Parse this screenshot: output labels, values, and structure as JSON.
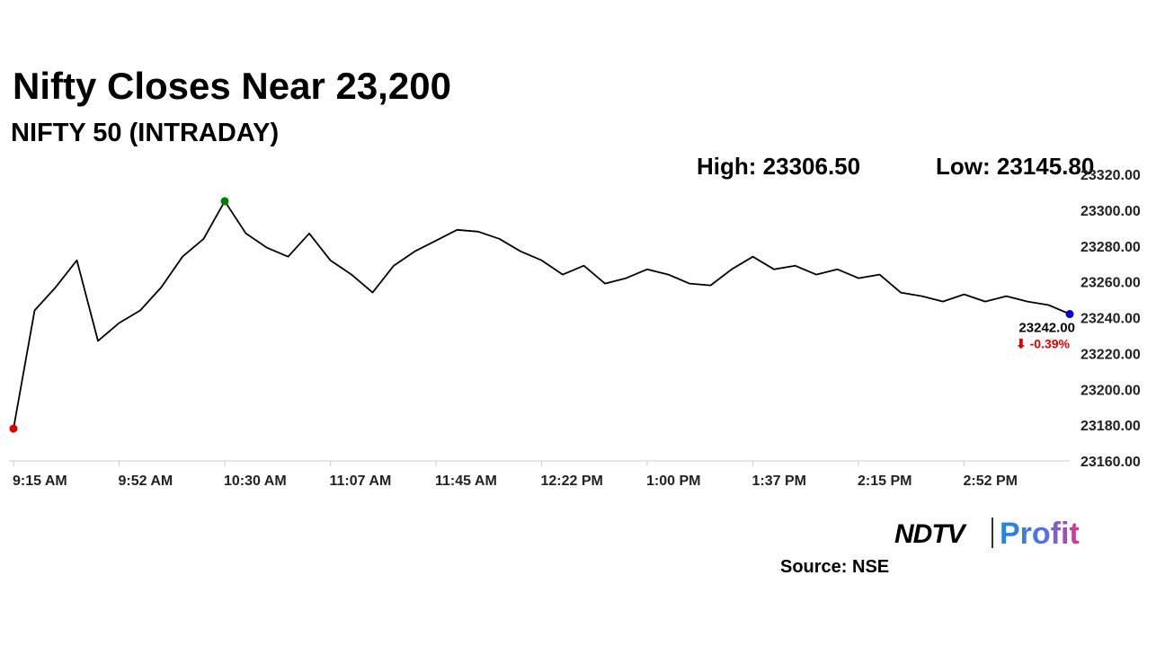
{
  "chart_data": {
    "type": "line",
    "title": "Nifty Closes Near 23,200",
    "subtitle": "NIFTY 50 (INTRADAY)",
    "high_label": "High: 23306.50",
    "low_label": "Low: 23145.80",
    "close_label": "23242.00",
    "change_label": "⬇ -0.39%",
    "change_color": "#e00000",
    "source": "Source: NSE",
    "logo_left": "NDTV",
    "logo_right": "Profit",
    "categories": [
      "9:15 AM",
      null,
      null,
      null,
      null,
      "9:52 AM",
      null,
      null,
      null,
      null,
      "10:30 AM",
      null,
      null,
      null,
      null,
      "11:07 AM",
      null,
      null,
      null,
      null,
      "11:45 AM",
      null,
      null,
      null,
      null,
      "12:22 PM",
      null,
      null,
      null,
      null,
      "1:00 PM",
      null,
      null,
      null,
      null,
      "1:37 PM",
      null,
      null,
      null,
      null,
      "2:15 PM",
      null,
      null,
      null,
      null,
      "2:52 PM",
      null,
      null,
      null,
      null,
      null
    ],
    "series": [
      {
        "color": "#000000",
        "values": [
          23178,
          23244,
          23257,
          23272,
          23227,
          23237,
          23244,
          23257,
          23274,
          23284,
          23305,
          23287,
          23279,
          23274,
          23287,
          23272,
          23264,
          23254,
          23269,
          23277,
          23283,
          23289,
          23288,
          23284,
          23277,
          23272,
          23264,
          23269,
          23259,
          23262,
          23267,
          23264,
          23259,
          23258,
          23267,
          23274,
          23267,
          23269,
          23264,
          23267,
          23262,
          23264,
          23254,
          23252,
          23249,
          23253,
          23249,
          23252,
          23249,
          23247,
          23242
        ]
      }
    ],
    "point_markers": [
      {
        "index": 0,
        "color": "#e00000"
      },
      {
        "index": 10,
        "color": "#008000"
      },
      {
        "index": 50,
        "color": "#0000cc"
      }
    ],
    "ylim": [
      23160,
      23320
    ],
    "yticks": [
      {
        "value": 23160,
        "label": "23160.00"
      },
      {
        "value": 23180,
        "label": "23180.00"
      },
      {
        "value": 23200,
        "label": "23200.00"
      },
      {
        "value": 23220,
        "label": "23220.00"
      },
      {
        "value": 23240,
        "label": "23240.00"
      },
      {
        "value": 23260,
        "label": "23260.00"
      },
      {
        "value": 23280,
        "label": "23280.00"
      },
      {
        "value": 23300,
        "label": "23300.00"
      },
      {
        "value": 23320,
        "label": "23320.00"
      }
    ],
    "grid": false
  }
}
